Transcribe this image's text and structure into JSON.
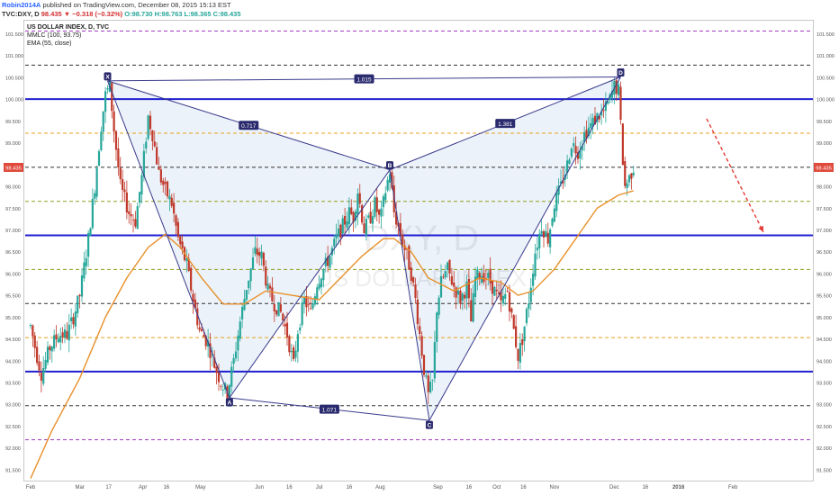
{
  "header": {
    "publisher": "Robin2014A",
    "published_text": "published on TradingView.com, December 08, 2015 15:13 EST",
    "symbol": "TVC:DXY, D",
    "change": "98.435 ▼ −0.318 (−0.32%)",
    "ohlc": "O:98.730 H:98.763 L:98.365 C:98.435"
  },
  "legend": {
    "title": "US DOLLAR INDEX, D, TVC",
    "line2": "MMLC (100, 93.75)",
    "line3": "EMA (55, close)"
  },
  "watermark": {
    "symbol": "DXY, D",
    "name": "US DOLLAR INDEX"
  },
  "colors": {
    "up": "#26a69a",
    "down": "#c0392b",
    "ema": "#e8902a",
    "blue_level": "#1f1fd1",
    "harmonic": "#3a3a8c",
    "fill": "#dde9f5",
    "price_label": "#e04a3c",
    "arrow": "#e53935"
  },
  "chart_data": {
    "type": "candlestick",
    "title": "US DOLLAR INDEX, D, TVC",
    "x_ticks": [
      "Feb",
      "Mar",
      "17",
      "Apr",
      "16",
      "May",
      "Jun",
      "16",
      "Jul",
      "16",
      "Aug",
      "Sep",
      "16",
      "Oct",
      "16",
      "Nov",
      "Dec",
      "16",
      "2016",
      "Feb"
    ],
    "x_tick_pos": [
      0,
      46,
      73,
      105,
      127,
      159,
      214,
      242,
      270,
      298,
      327,
      381,
      410,
      436,
      461,
      490,
      546,
      575,
      606,
      657
    ],
    "y_ticks": [
      "91.500",
      "92.000",
      "92.500",
      "93.000",
      "93.500",
      "94.000",
      "94.500",
      "95.000",
      "95.500",
      "96.000",
      "96.500",
      "97.000",
      "97.500",
      "98.000",
      "98.500",
      "99.000",
      "99.500",
      "100.000",
      "100.500",
      "101.000",
      "101.500"
    ],
    "ylim": [
      91.25,
      101.8
    ],
    "last_price": "98.435",
    "last_price_value": 98.435,
    "blue_levels": [
      100.0,
      96.875,
      93.75
    ],
    "dashed_levels": [
      {
        "value": 101.5625,
        "color": "#a03bbf"
      },
      {
        "value": 100.78125,
        "color": "#333333"
      },
      {
        "value": 99.21875,
        "color": "#e8a020"
      },
      {
        "value": 98.4375,
        "color": "#333333"
      },
      {
        "value": 97.65625,
        "color": "#8fa020"
      },
      {
        "value": 96.09375,
        "color": "#8fa020"
      },
      {
        "value": 95.3125,
        "color": "#333333"
      },
      {
        "value": 94.53125,
        "color": "#e8a020"
      },
      {
        "value": 92.96875,
        "color": "#333333"
      },
      {
        "value": 92.1875,
        "color": "#a03bbf"
      }
    ],
    "harmonic_points": [
      {
        "label": "X",
        "t": 72,
        "v": 100.42
      },
      {
        "label": "A",
        "t": 186,
        "v": 93.15
      },
      {
        "label": "B",
        "t": 336,
        "v": 98.38
      },
      {
        "label": "C",
        "t": 373,
        "v": 92.63
      },
      {
        "label": "D",
        "t": 552,
        "v": 100.51
      }
    ],
    "ratios": [
      {
        "label": "0.717",
        "from": "X",
        "to": "B"
      },
      {
        "label": "1.015",
        "from": "X",
        "to": "D"
      },
      {
        "label": "1.381",
        "from": "B",
        "to": "D"
      },
      {
        "label": "1.071",
        "from": "A",
        "to": "C"
      }
    ],
    "price_anchors": [
      [
        0,
        94.8
      ],
      [
        5,
        94.2
      ],
      [
        10,
        93.7
      ],
      [
        18,
        94.3
      ],
      [
        26,
        94.6
      ],
      [
        34,
        94.6
      ],
      [
        40,
        95.0
      ],
      [
        46,
        95.5
      ],
      [
        54,
        96.8
      ],
      [
        60,
        98.0
      ],
      [
        66,
        99.4
      ],
      [
        70,
        100.1
      ],
      [
        74,
        100.3
      ],
      [
        78,
        99.3
      ],
      [
        84,
        98.0
      ],
      [
        92,
        97.4
      ],
      [
        98,
        97.2
      ],
      [
        104,
        98.2
      ],
      [
        110,
        99.6
      ],
      [
        114,
        99.2
      ],
      [
        120,
        98.3
      ],
      [
        126,
        97.9
      ],
      [
        132,
        97.6
      ],
      [
        138,
        96.8
      ],
      [
        146,
        96.2
      ],
      [
        152,
        95.4
      ],
      [
        158,
        94.7
      ],
      [
        166,
        94.4
      ],
      [
        172,
        93.9
      ],
      [
        178,
        93.5
      ],
      [
        184,
        93.25
      ],
      [
        190,
        94.0
      ],
      [
        196,
        94.9
      ],
      [
        202,
        95.7
      ],
      [
        210,
        96.5
      ],
      [
        216,
        96.4
      ],
      [
        222,
        95.6
      ],
      [
        228,
        95.3
      ],
      [
        234,
        95.1
      ],
      [
        240,
        94.6
      ],
      [
        246,
        93.9
      ],
      [
        250,
        94.7
      ],
      [
        256,
        95.4
      ],
      [
        262,
        95.1
      ],
      [
        268,
        95.8
      ],
      [
        274,
        96.1
      ],
      [
        280,
        96.4
      ],
      [
        286,
        96.8
      ],
      [
        292,
        97.1
      ],
      [
        298,
        97.4
      ],
      [
        302,
        97.3
      ],
      [
        306,
        97.9
      ],
      [
        312,
        97.0
      ],
      [
        318,
        97.3
      ],
      [
        322,
        97.6
      ],
      [
        327,
        97.2
      ],
      [
        332,
        97.9
      ],
      [
        336,
        98.35
      ],
      [
        340,
        97.4
      ],
      [
        346,
        96.9
      ],
      [
        352,
        96.4
      ],
      [
        356,
        96.0
      ],
      [
        360,
        95.4
      ],
      [
        364,
        94.6
      ],
      [
        368,
        93.8
      ],
      [
        372,
        93.2
      ],
      [
        376,
        93.5
      ],
      [
        380,
        95.2
      ],
      [
        384,
        95.8
      ],
      [
        390,
        96.1
      ],
      [
        396,
        95.7
      ],
      [
        402,
        95.4
      ],
      [
        408,
        95.7
      ],
      [
        412,
        94.9
      ],
      [
        416,
        95.9
      ],
      [
        422,
        96.0
      ],
      [
        428,
        95.9
      ],
      [
        434,
        95.6
      ],
      [
        440,
        95.3
      ],
      [
        446,
        95.6
      ],
      [
        452,
        94.7
      ],
      [
        456,
        94.1
      ],
      [
        460,
        94.5
      ],
      [
        466,
        95.4
      ],
      [
        472,
        96.5
      ],
      [
        478,
        97.1
      ],
      [
        484,
        96.8
      ],
      [
        490,
        97.6
      ],
      [
        496,
        98.0
      ],
      [
        502,
        98.5
      ],
      [
        506,
        99.0
      ],
      [
        512,
        98.8
      ],
      [
        518,
        99.2
      ],
      [
        524,
        99.4
      ],
      [
        530,
        99.6
      ],
      [
        536,
        99.7
      ],
      [
        542,
        100.0
      ],
      [
        546,
        100.3
      ],
      [
        550,
        100.2
      ],
      [
        554,
        98.6
      ],
      [
        556,
        98.0
      ],
      [
        560,
        98.2
      ],
      [
        564,
        98.435
      ]
    ],
    "ema_anchors": [
      [
        0,
        91.3
      ],
      [
        20,
        92.4
      ],
      [
        46,
        93.6
      ],
      [
        70,
        95.0
      ],
      [
        90,
        95.9
      ],
      [
        110,
        96.6
      ],
      [
        126,
        96.9
      ],
      [
        140,
        96.6
      ],
      [
        160,
        95.9
      ],
      [
        180,
        95.3
      ],
      [
        200,
        95.3
      ],
      [
        220,
        95.6
      ],
      [
        245,
        95.5
      ],
      [
        270,
        95.4
      ],
      [
        290,
        95.9
      ],
      [
        310,
        96.4
      ],
      [
        330,
        96.8
      ],
      [
        340,
        96.8
      ],
      [
        356,
        96.5
      ],
      [
        372,
        95.9
      ],
      [
        396,
        95.6
      ],
      [
        420,
        95.9
      ],
      [
        440,
        95.8
      ],
      [
        456,
        95.5
      ],
      [
        470,
        95.6
      ],
      [
        490,
        96.1
      ],
      [
        510,
        96.8
      ],
      [
        530,
        97.5
      ],
      [
        550,
        97.8
      ],
      [
        564,
        97.9
      ]
    ]
  }
}
